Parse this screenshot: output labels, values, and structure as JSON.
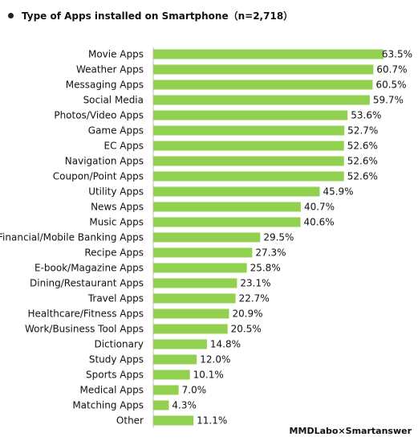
{
  "chart_data": {
    "type": "bar",
    "orientation": "horizontal",
    "title": "Type of Apps installed on Smartphone（n=2,718）",
    "value_suffix": "%",
    "xlim": [
      0,
      63.5
    ],
    "grid": false,
    "bar_color": "#92d050",
    "categories": [
      "Movie Apps",
      "Weather Apps",
      "Messaging Apps",
      "Social Media",
      "Photos/Video Apps",
      "Game Apps",
      "EC Apps",
      "Navigation Apps",
      "Coupon/Point Apps",
      "Utility Apps",
      "News Apps",
      "Music Apps",
      "Financial/Mobile Banking Apps",
      "Recipe Apps",
      "E-book/Magazine Apps",
      "Dining/Restaurant Apps",
      "Travel Apps",
      "Healthcare/Fitness Apps",
      "Work/Business Tool Apps",
      "Dictionary",
      "Study Apps",
      "Sports Apps",
      "Medical Apps",
      "Matching Apps",
      "Other"
    ],
    "values": [
      63.5,
      60.7,
      60.5,
      59.7,
      53.6,
      52.7,
      52.6,
      52.6,
      52.6,
      45.9,
      40.7,
      40.6,
      29.5,
      27.3,
      25.8,
      23.1,
      22.7,
      20.9,
      20.5,
      14.8,
      12.0,
      10.1,
      7.0,
      4.3,
      11.1
    ],
    "labels": [
      "63.5%",
      "60.7%",
      "60.5%",
      "59.7%",
      "53.6%",
      "52.7%",
      "52.6%",
      "52.6%",
      "52.6%",
      "45.9%",
      "40.7%",
      "40.6%",
      "29.5%",
      "27.3%",
      "25.8%",
      "23.1%",
      "22.7%",
      "20.9%",
      "20.5%",
      "14.8%",
      "12.0%",
      "10.1%",
      "7.0%",
      "4.3%",
      "11.1%"
    ]
  },
  "source": "MMDLabo×Smartanswer"
}
